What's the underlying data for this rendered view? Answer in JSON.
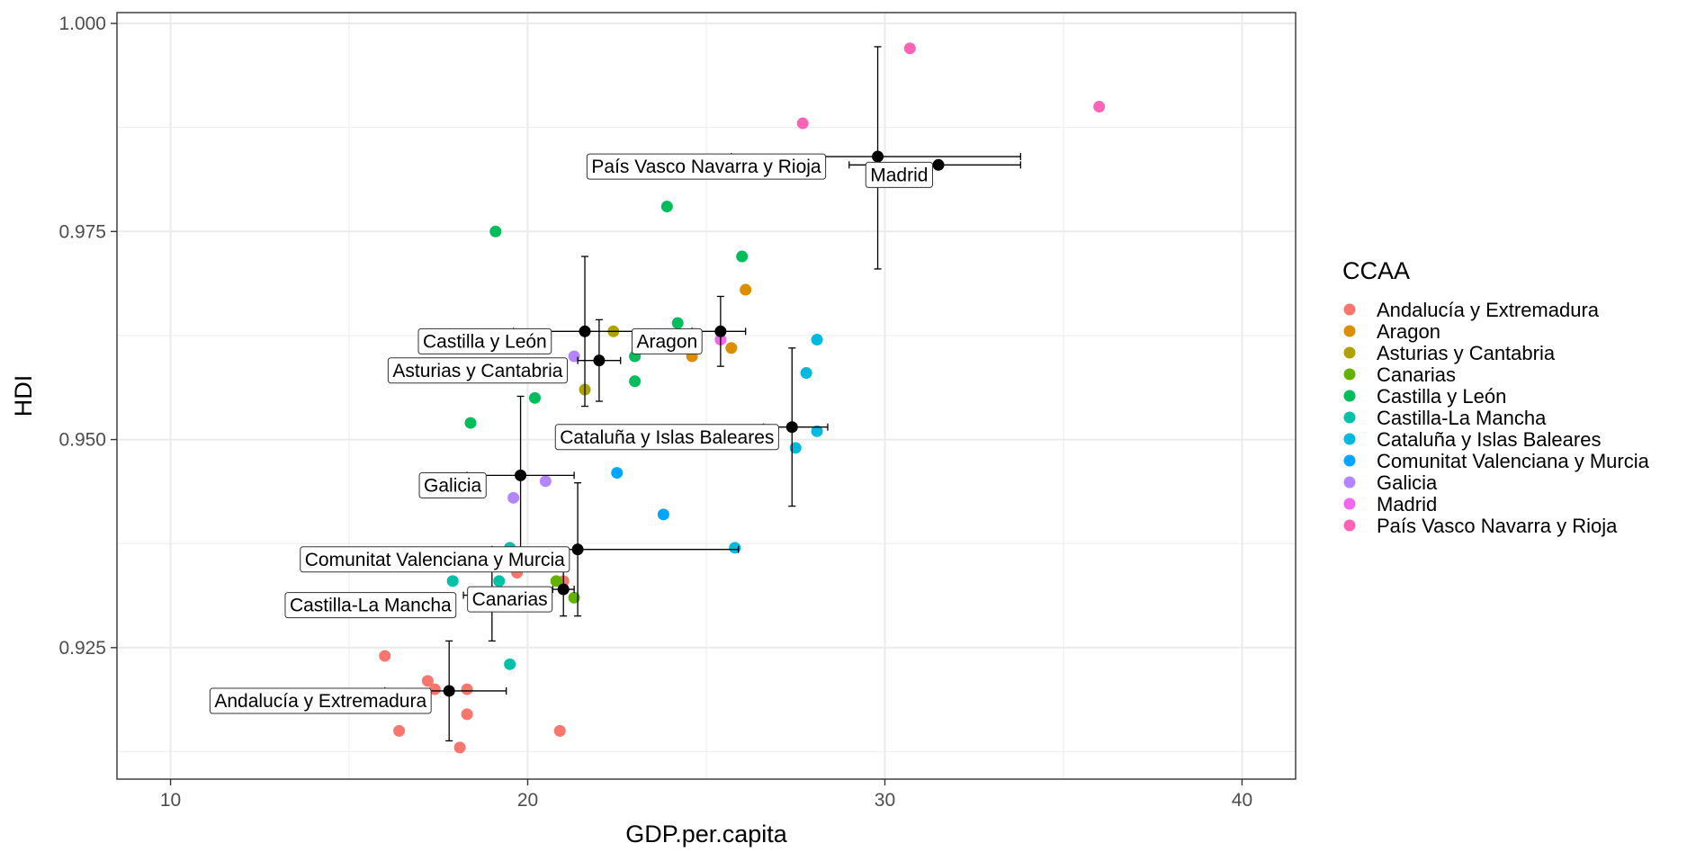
{
  "chart_data": {
    "type": "scatter",
    "title": "",
    "xlabel": "GDP.per.capita",
    "ylabel": "HDI",
    "xlim": [
      8.5,
      41.5
    ],
    "ylim": [
      0.9092,
      1.0013
    ],
    "x_ticks": [
      10,
      20,
      30,
      40
    ],
    "x_tick_labels": [
      "10",
      "20",
      "30",
      "40"
    ],
    "y_ticks": [
      0.925,
      0.95,
      0.975,
      1.0
    ],
    "y_tick_labels": [
      "0.925",
      "0.950",
      "0.975",
      "1.000"
    ],
    "grid": true,
    "legend": {
      "title": "CCAA",
      "position": "right"
    },
    "series": [
      {
        "name": "Andalucía y Extremadura",
        "color": "#F8766D",
        "points": [
          [
            16.0,
            0.924
          ],
          [
            17.2,
            0.921
          ],
          [
            17.4,
            0.92
          ],
          [
            18.3,
            0.92
          ],
          [
            18.3,
            0.917
          ],
          [
            16.4,
            0.915
          ],
          [
            18.1,
            0.913
          ],
          [
            20.9,
            0.915
          ],
          [
            21.0,
            0.933
          ],
          [
            19.7,
            0.934
          ]
        ]
      },
      {
        "name": "Aragon",
        "color": "#DB8E00",
        "points": [
          [
            26.1,
            0.968
          ],
          [
            25.7,
            0.961
          ],
          [
            24.6,
            0.96
          ]
        ]
      },
      {
        "name": "Asturias y Cantabria",
        "color": "#AEA200",
        "points": [
          [
            22.4,
            0.963
          ],
          [
            21.6,
            0.956
          ]
        ]
      },
      {
        "name": "Canarias",
        "color": "#64B200",
        "points": [
          [
            20.8,
            0.933
          ],
          [
            21.3,
            0.931
          ]
        ]
      },
      {
        "name": "Castilla y León",
        "color": "#00BD5C",
        "points": [
          [
            19.1,
            0.975
          ],
          [
            23.9,
            0.978
          ],
          [
            26.0,
            0.972
          ],
          [
            24.2,
            0.964
          ],
          [
            23.0,
            0.96
          ],
          [
            23.0,
            0.957
          ],
          [
            20.2,
            0.955
          ],
          [
            18.4,
            0.952
          ],
          [
            17.9,
            0.959
          ]
        ]
      },
      {
        "name": "Castilla-La Mancha",
        "color": "#00C1A7",
        "points": [
          [
            19.5,
            0.937
          ],
          [
            17.9,
            0.933
          ],
          [
            19.2,
            0.933
          ],
          [
            19.5,
            0.923
          ]
        ]
      },
      {
        "name": "Cataluña y Islas Baleares",
        "color": "#00BADE",
        "points": [
          [
            28.1,
            0.962
          ],
          [
            27.8,
            0.958
          ],
          [
            28.1,
            0.951
          ],
          [
            27.5,
            0.949
          ],
          [
            25.8,
            0.937
          ]
        ]
      },
      {
        "name": "Comunitat Valenciana y Murcia",
        "color": "#00A6FF",
        "points": [
          [
            22.5,
            0.946
          ],
          [
            23.8,
            0.941
          ]
        ]
      },
      {
        "name": "Galicia",
        "color": "#B385FF",
        "points": [
          [
            20.5,
            0.945
          ],
          [
            19.6,
            0.943
          ],
          [
            21.3,
            0.96
          ]
        ]
      },
      {
        "name": "Madrid",
        "color": "#EF67EB",
        "points": [
          [
            25.4,
            0.962
          ]
        ]
      },
      {
        "name": "País Vasco Navarra y Rioja",
        "color": "#FF63B6",
        "points": [
          [
            30.7,
            0.997
          ],
          [
            36.0,
            0.99
          ],
          [
            27.7,
            0.988
          ]
        ]
      }
    ],
    "group_means": [
      {
        "label": "Andalucía y Extremadura",
        "x": 17.8,
        "y": 0.9198,
        "x_err": [
          16.0,
          19.4
        ],
        "y_err": [
          0.9138,
          0.9258
        ],
        "label_x": 14.2,
        "label_y": 0.9186
      },
      {
        "label": "Aragon",
        "x": 25.4,
        "y": 0.963,
        "x_err": [
          24.6,
          26.1
        ],
        "y_err": [
          0.9588,
          0.9672
        ],
        "label_x": 23.9,
        "label_y": 0.9618
      },
      {
        "label": "Asturias y Cantabria",
        "x": 22.0,
        "y": 0.9595,
        "x_err": [
          21.4,
          22.6
        ],
        "y_err": [
          0.9546,
          0.9644
        ],
        "label_x": 18.6,
        "label_y": 0.9583
      },
      {
        "label": "Canarias",
        "x": 21.0,
        "y": 0.932,
        "x_err": [
          20.7,
          21.3
        ],
        "y_err": [
          0.9288,
          0.9352
        ],
        "label_x": 19.5,
        "label_y": 0.9308
      },
      {
        "label": "Castilla y León",
        "x": 21.6,
        "y": 0.963,
        "x_err": [
          19.6,
          24.6
        ],
        "y_err": [
          0.954,
          0.972
        ],
        "label_x": 18.8,
        "label_y": 0.9618
      },
      {
        "label": "Castilla-La Mancha",
        "x": 19.0,
        "y": 0.9313,
        "x_err": [
          18.2,
          19.8
        ],
        "y_err": [
          0.9258,
          0.9368
        ],
        "label_x": 15.6,
        "label_y": 0.9301
      },
      {
        "label": "Cataluña y Islas Baleares",
        "x": 27.4,
        "y": 0.9515,
        "x_err": [
          26.6,
          28.4
        ],
        "y_err": [
          0.942,
          0.961
        ],
        "label_x": 23.9,
        "label_y": 0.9503
      },
      {
        "label": "Comunitat Valenciana y Murcia",
        "x": 21.4,
        "y": 0.9368,
        "x_err": [
          19.0,
          25.9
        ],
        "y_err": [
          0.9288,
          0.9448
        ],
        "label_x": 17.4,
        "label_y": 0.9356
      },
      {
        "label": "Galicia",
        "x": 19.8,
        "y": 0.9457,
        "x_err": [
          18.3,
          21.3
        ],
        "y_err": [
          0.9362,
          0.9552
        ],
        "label_x": 17.9,
        "label_y": 0.9445
      },
      {
        "label": "Madrid",
        "x": 31.5,
        "y": 0.983,
        "x_err": [
          29.0,
          33.8
        ],
        "y_err": [
          0.983,
          0.983
        ],
        "label_x": 30.4,
        "label_y": 0.9818
      },
      {
        "label": "País Vasco Navarra y Rioja",
        "x": 29.8,
        "y": 0.984,
        "x_err": [
          25.7,
          33.8
        ],
        "y_err": [
          0.9705,
          0.9972
        ],
        "label_x": 25.0,
        "label_y": 0.9828
      }
    ]
  }
}
